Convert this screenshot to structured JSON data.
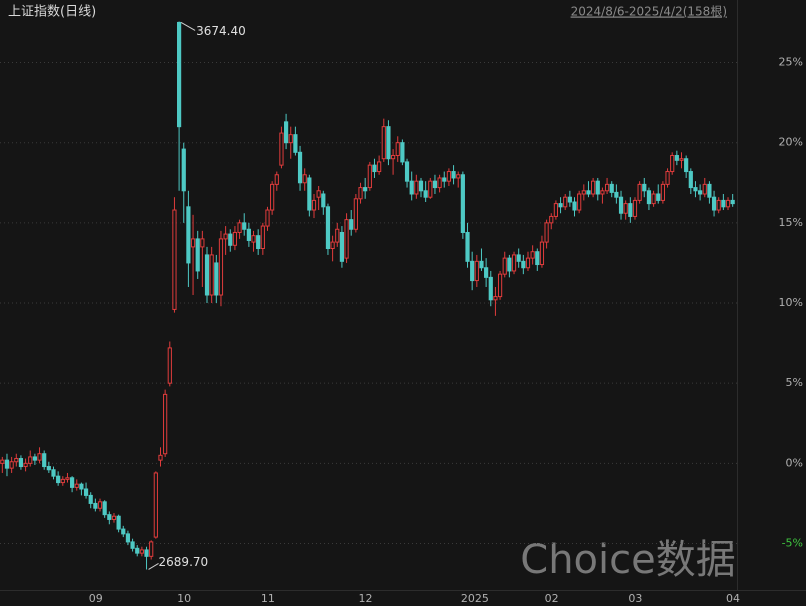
{
  "chart_data": {
    "type": "candlestick",
    "title": "上证指数(日线)",
    "range_label": "2024/8/6-2025/4/2(158根)",
    "watermark": "Choice数据",
    "annotations": [
      "3674.40",
      "2689.70"
    ],
    "categories": [
      null,
      null,
      null,
      null,
      null,
      null,
      null,
      null,
      null,
      null,
      null,
      null,
      null,
      null,
      null,
      null,
      null,
      null,
      null,
      "09",
      null,
      null,
      null,
      null,
      null,
      null,
      null,
      null,
      null,
      null,
      null,
      null,
      null,
      null,
      null,
      null,
      null,
      null,
      "10",
      null,
      null,
      null,
      null,
      null,
      null,
      null,
      null,
      null,
      null,
      null,
      null,
      null,
      null,
      null,
      null,
      null,
      "11",
      null,
      null,
      null,
      null,
      null,
      null,
      null,
      null,
      null,
      null,
      null,
      null,
      null,
      null,
      null,
      null,
      null,
      null,
      null,
      null,
      "12",
      null,
      null,
      null,
      null,
      null,
      null,
      null,
      null,
      null,
      null,
      null,
      null,
      null,
      null,
      null,
      null,
      null,
      null,
      null,
      null,
      null,
      "2025",
      null,
      null,
      null,
      null,
      null,
      null,
      null,
      null,
      null,
      null,
      null,
      null,
      null,
      null,
      null,
      null,
      null,
      "02",
      null,
      null,
      null,
      null,
      null,
      null,
      null,
      null,
      null,
      null,
      null,
      null,
      null,
      null,
      null,
      null,
      null,
      "03",
      null,
      null,
      null,
      null,
      null,
      null,
      null,
      null,
      null,
      null,
      null,
      null,
      null,
      null,
      null,
      null,
      null,
      null,
      null,
      null,
      "04",
      null
    ],
    "open": [
      0.0,
      0.2,
      -0.3,
      0.1,
      0.3,
      -0.2,
      0.0,
      0.4,
      0.2,
      0.6,
      -0.2,
      -0.4,
      -0.8,
      -1.2,
      -1.0,
      -0.9,
      -1.5,
      -1.3,
      -1.6,
      -2.0,
      -2.5,
      -2.8,
      -2.4,
      -3.2,
      -3.5,
      -3.3,
      -4.1,
      -4.4,
      -4.9,
      -5.3,
      -5.6,
      -5.4,
      -5.8,
      -4.6,
      0.2,
      0.6,
      5.0,
      9.6,
      27.5,
      19.6,
      16.0,
      13.5,
      14.0,
      13.5,
      13.0,
      10.5,
      12.5,
      10.5,
      14.0,
      14.3,
      13.6,
      14.4,
      15.0,
      14.6,
      13.8,
      14.2,
      13.4,
      14.8,
      15.8,
      17.4,
      18.6,
      21.3,
      20.0,
      20.5,
      19.4,
      17.5,
      17.8,
      15.8,
      16.6,
      16.8,
      16.0,
      13.4,
      13.8,
      14.4,
      12.8,
      15.2,
      14.6,
      16.5,
      17.2,
      17.2,
      18.6,
      18.2,
      19.0,
      21.0,
      19.0,
      19.2,
      20.0,
      18.8,
      17.6,
      16.8,
      17.6,
      17.0,
      16.6,
      17.6,
      17.2,
      17.8,
      17.6,
      18.2,
      17.8,
      18.0,
      14.4,
      12.6,
      11.4,
      12.6,
      12.2,
      11.6,
      10.2,
      10.4,
      11.8,
      12.8,
      12.0,
      13.0,
      12.6,
      12.2,
      12.8,
      13.2,
      12.4,
      13.8,
      15.0,
      15.4,
      16.2,
      16.0,
      16.6,
      16.3,
      15.8,
      16.8,
      17.0,
      16.8,
      17.6,
      16.8,
      17.0,
      17.4,
      16.9,
      16.6,
      15.6,
      16.2,
      15.4,
      16.4,
      17.4,
      17.0,
      16.2,
      16.8,
      16.4,
      17.4,
      18.2,
      19.2,
      18.9,
      19.0,
      18.2,
      17.2,
      17.0,
      16.8,
      17.4,
      16.6,
      15.8,
      16.4,
      16.0,
      16.4
    ],
    "high": [
      0.4,
      0.6,
      0.4,
      0.6,
      0.5,
      0.3,
      0.8,
      0.6,
      1.0,
      0.8,
      0.1,
      -0.2,
      -0.5,
      -0.8,
      -0.6,
      -0.8,
      -1.0,
      -1.2,
      -1.2,
      -1.8,
      -2.2,
      -2.2,
      -2.3,
      -3.0,
      -3.1,
      -3.2,
      -3.9,
      -4.2,
      -4.7,
      -5.1,
      -5.2,
      -5.2,
      -4.8,
      -0.5,
      1.0,
      4.6,
      7.6,
      16.6,
      27.56,
      20.0,
      17.0,
      15.5,
      14.5,
      14.5,
      13.5,
      13.5,
      13.0,
      14.5,
      14.8,
      14.6,
      14.8,
      15.2,
      15.6,
      15.0,
      14.5,
      14.6,
      15.0,
      16.0,
      17.6,
      18.2,
      21.0,
      21.8,
      21.0,
      21.0,
      19.8,
      18.4,
      18.0,
      16.8,
      17.3,
      17.0,
      16.2,
      14.2,
      15.0,
      14.8,
      15.6,
      15.8,
      16.8,
      17.5,
      17.8,
      18.8,
      19.0,
      19.2,
      21.5,
      21.4,
      19.6,
      20.4,
      20.2,
      19.0,
      18.2,
      18.0,
      17.8,
      17.6,
      17.8,
      18.0,
      18.0,
      18.2,
      18.4,
      18.6,
      18.2,
      18.2,
      15.0,
      13.2,
      13.0,
      13.4,
      12.8,
      12.0,
      11.0,
      12.0,
      13.2,
      13.0,
      13.2,
      13.4,
      13.0,
      13.2,
      13.6,
      13.4,
      14.2,
      15.2,
      15.6,
      16.4,
      16.6,
      16.8,
      17.0,
      16.6,
      17.0,
      17.4,
      17.6,
      17.8,
      17.8,
      17.2,
      17.8,
      17.6,
      17.4,
      17.0,
      16.4,
      16.6,
      16.6,
      17.6,
      17.8,
      17.2,
      17.0,
      17.4,
      17.6,
      18.4,
      19.4,
      19.5,
      19.4,
      19.2,
      18.4,
      17.6,
      17.4,
      17.8,
      17.6,
      17.0,
      16.6,
      16.8,
      16.6,
      16.8
    ],
    "low": [
      -0.6,
      -0.8,
      -0.6,
      -0.2,
      -0.4,
      -0.5,
      -0.2,
      -0.1,
      0.0,
      -0.4,
      -0.6,
      -1.0,
      -1.4,
      -1.4,
      -1.2,
      -1.8,
      -1.7,
      -2.0,
      -2.2,
      -2.8,
      -3.0,
      -3.0,
      -3.4,
      -3.8,
      -3.7,
      -4.3,
      -4.6,
      -5.1,
      -5.5,
      -5.8,
      -5.8,
      -6.62,
      -6.0,
      -4.7,
      -0.2,
      0.4,
      4.8,
      9.4,
      17.0,
      15.0,
      11.0,
      10.5,
      11.5,
      11.0,
      10.0,
      10.0,
      10.0,
      9.8,
      13.0,
      13.2,
      13.3,
      14.0,
      14.2,
      13.5,
      13.2,
      13.0,
      13.0,
      14.5,
      15.5,
      17.0,
      18.4,
      19.6,
      19.0,
      19.2,
      17.0,
      17.0,
      15.4,
      15.3,
      15.8,
      15.5,
      13.0,
      12.6,
      13.5,
      12.2,
      12.5,
      14.2,
      14.4,
      16.2,
      16.5,
      17.0,
      17.8,
      18.0,
      18.8,
      18.6,
      18.0,
      18.8,
      18.6,
      17.2,
      16.4,
      16.5,
      16.6,
      16.3,
      16.5,
      16.8,
      16.9,
      17.2,
      17.3,
      17.4,
      17.2,
      14.0,
      12.2,
      10.8,
      11.0,
      12.0,
      11.0,
      9.8,
      9.2,
      10.2,
      11.6,
      11.6,
      11.8,
      12.2,
      11.8,
      12.0,
      12.4,
      12.0,
      12.2,
      13.4,
      14.6,
      15.2,
      15.6,
      15.8,
      16.0,
      15.4,
      15.6,
      16.4,
      16.6,
      16.6,
      16.4,
      16.2,
      16.8,
      16.6,
      16.2,
      15.2,
      15.2,
      15.0,
      15.2,
      16.2,
      16.6,
      15.8,
      16.0,
      16.2,
      16.2,
      17.2,
      18.0,
      18.6,
      18.4,
      17.8,
      16.8,
      16.6,
      16.4,
      16.6,
      16.2,
      15.4,
      15.6,
      15.8,
      15.8,
      16.0
    ],
    "close": [
      0.2,
      -0.3,
      0.1,
      0.3,
      -0.2,
      0.0,
      0.4,
      0.2,
      0.6,
      -0.2,
      -0.4,
      -0.8,
      -1.2,
      -1.0,
      -0.9,
      -1.5,
      -1.3,
      -1.6,
      -2.0,
      -2.5,
      -2.8,
      -2.4,
      -3.2,
      -3.5,
      -3.3,
      -4.1,
      -4.4,
      -4.9,
      -5.3,
      -5.6,
      -5.4,
      -5.8,
      -4.9,
      -0.6,
      0.5,
      4.3,
      7.2,
      15.8,
      21.0,
      17.0,
      12.5,
      14.0,
      12.0,
      14.0,
      10.5,
      13.0,
      10.5,
      14.0,
      14.3,
      13.6,
      14.4,
      15.0,
      14.6,
      13.9,
      14.2,
      13.4,
      14.8,
      15.8,
      17.4,
      18.0,
      20.6,
      20.0,
      20.5,
      19.4,
      17.5,
      18.0,
      15.8,
      16.4,
      17.0,
      16.0,
      13.4,
      13.8,
      14.6,
      12.6,
      15.2,
      14.6,
      16.5,
      17.2,
      17.0,
      18.6,
      18.2,
      18.8,
      21.0,
      19.0,
      19.2,
      20.0,
      18.8,
      17.6,
      16.8,
      17.6,
      17.0,
      16.6,
      17.6,
      17.2,
      17.8,
      17.6,
      18.2,
      17.8,
      18.0,
      14.4,
      12.6,
      11.4,
      12.6,
      12.2,
      11.6,
      10.2,
      10.4,
      11.8,
      12.8,
      12.0,
      13.0,
      12.6,
      12.2,
      12.8,
      13.2,
      12.4,
      13.8,
      15.0,
      15.4,
      16.2,
      16.0,
      16.6,
      16.3,
      15.8,
      16.8,
      17.0,
      16.8,
      17.6,
      16.8,
      17.0,
      17.4,
      16.9,
      16.6,
      15.6,
      16.2,
      15.4,
      16.4,
      17.4,
      17.0,
      16.2,
      16.8,
      16.4,
      17.4,
      18.2,
      19.2,
      18.9,
      19.0,
      18.2,
      17.2,
      17.0,
      16.8,
      17.4,
      16.6,
      15.8,
      16.4,
      16.0,
      16.4,
      16.2
    ],
    "up_color": "#e03c3c",
    "down_color": "#4ec9c4",
    "ylim": [
      -7.9,
      28.9
    ],
    "yticks": [
      {
        "value": -5,
        "label": "-5%"
      },
      {
        "value": 0,
        "label": "0%"
      },
      {
        "value": 5,
        "label": "5%"
      },
      {
        "value": 10,
        "label": "10%"
      },
      {
        "value": 15,
        "label": "15%"
      },
      {
        "value": 20,
        "label": "20%"
      },
      {
        "value": 25,
        "label": "25%"
      }
    ],
    "tick_color": "#b0b0b0",
    "negative_tick_color": "#3fc43f",
    "grid": true
  }
}
